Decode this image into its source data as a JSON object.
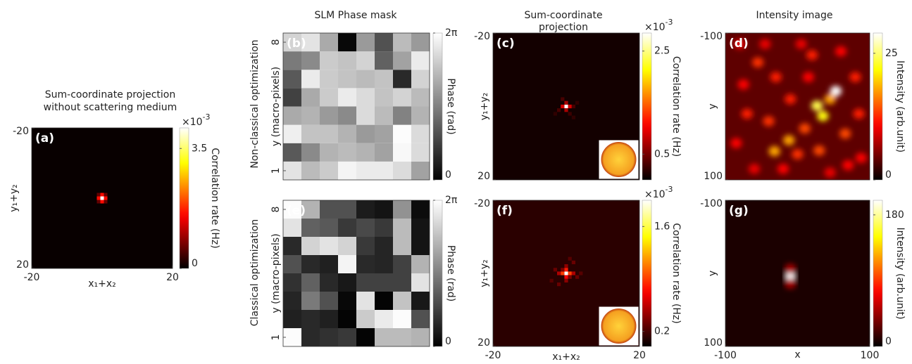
{
  "column_titles": [
    [
      "SLM Phase mask"
    ],
    [
      "Sum-coordinate",
      "projection"
    ],
    [
      "Intensity image"
    ]
  ],
  "row_labels": [
    "Non-classical optimization",
    "Classical optimization"
  ],
  "chart_data": [
    {
      "type": "heatmap",
      "panel": "(a)",
      "title": [
        "Sum-coordinate projection",
        "without scattering medium"
      ],
      "x_label": "x₁+x₂",
      "y_label": "y₁+y₂",
      "xlim": [
        -20,
        20
      ],
      "ylim": [
        -20,
        20
      ],
      "y_reversed": true,
      "xticks": [
        -20,
        20
      ],
      "yticks": [
        -20,
        20
      ],
      "colormap": "hot",
      "colorbar_label": "Correlation rate (Hz)",
      "colorbar_multiplier": {
        "base": "×10",
        "exponent": "-3"
      },
      "clim": [
        0,
        4.1
      ],
      "cticks": [
        0,
        3.5
      ],
      "background_value": 0.05,
      "spots": [
        [
          0,
          0,
          4.1
        ],
        [
          1,
          0,
          1.6
        ],
        [
          -1,
          0,
          1.6
        ],
        [
          0,
          1,
          1.6
        ],
        [
          0,
          -1,
          1.6
        ],
        [
          1,
          1,
          0.6
        ],
        [
          -1,
          -1,
          0.6
        ],
        [
          1,
          -1,
          0.6
        ],
        [
          -1,
          1,
          0.6
        ]
      ]
    },
    {
      "type": "matrix",
      "panel": "(b)",
      "y_label": "y (macro-pixels)",
      "xlim": [
        0.5,
        8.5
      ],
      "ylim": [
        0.5,
        8.5
      ],
      "yticks": [
        1,
        8
      ],
      "colormap": "gray",
      "colorbar_label": "Phase (rad)",
      "clim": [
        0,
        6.283
      ],
      "cticks": [
        0,
        {
          "value": 6.283,
          "label": "2π"
        }
      ],
      "z": [
        [
          5.6,
          4.6,
          5.0,
          6.0,
          5.8,
          5.8,
          5.4,
          4.0
        ],
        [
          2.2,
          3.4,
          4.4,
          4.6,
          4.4,
          4.0,
          6.1,
          5.4
        ],
        [
          5.9,
          4.8,
          4.8,
          4.4,
          3.8,
          4.0,
          6.2,
          5.4
        ],
        [
          4.2,
          4.4,
          3.8,
          3.4,
          5.4,
          4.6,
          3.2,
          4.4
        ],
        [
          1.6,
          4.2,
          5.0,
          5.8,
          5.4,
          4.8,
          5.2,
          4.6
        ],
        [
          2.2,
          5.8,
          5.0,
          4.8,
          4.6,
          4.8,
          1.0,
          5.2
        ],
        [
          3.0,
          3.4,
          5.0,
          4.8,
          5.2,
          2.4,
          4.0,
          5.8
        ],
        [
          5.2,
          5.6,
          4.2,
          0.2,
          3.8,
          2.0,
          4.6,
          3.8
        ]
      ]
    },
    {
      "type": "heatmap",
      "panel": "(c)",
      "y_label": "y₁+y₂",
      "xlim": [
        -20,
        20
      ],
      "ylim": [
        -20,
        20
      ],
      "y_reversed": true,
      "yticks": [
        -20,
        20
      ],
      "colormap": "hot",
      "colorbar_label": "Correlation rate (Hz)",
      "colorbar_multiplier": {
        "base": "×10",
        "exponent": "-3"
      },
      "clim": [
        0,
        2.85
      ],
      "cticks": [
        0.5,
        2.5
      ],
      "background_value": 0.08,
      "spots": [
        [
          0,
          0,
          2.85
        ],
        [
          1,
          0,
          0.9
        ],
        [
          -1,
          0,
          0.9
        ],
        [
          0,
          1,
          0.7
        ],
        [
          0,
          -1,
          0.7
        ],
        [
          2,
          0,
          0.3
        ],
        [
          -2,
          1,
          0.3
        ],
        [
          1,
          2,
          0.25
        ],
        [
          -1,
          -2,
          0.3
        ],
        [
          3,
          -1,
          0.2
        ],
        [
          -3,
          2,
          0.2
        ],
        [
          2,
          3,
          0.2
        ]
      ]
    },
    {
      "type": "speckle",
      "panel": "(d)",
      "y_label": "y",
      "xlim": [
        -100,
        100
      ],
      "ylim": [
        -100,
        100
      ],
      "y_reversed": true,
      "yticks": [
        -100,
        100
      ],
      "colormap": "hot",
      "colorbar_label": "Intensity (arb.unit)",
      "clim": [
        0,
        29
      ],
      "cticks": [
        0,
        25
      ],
      "background_value": 4,
      "spots": [
        [
          53,
          -21,
          29
        ],
        [
          27,
          -1,
          24
        ],
        [
          35,
          13,
          22
        ],
        [
          45,
          -10,
          18
        ],
        [
          -12,
          46,
          18
        ],
        [
          -32,
          61,
          18
        ],
        [
          66,
          37,
          14
        ],
        [
          10,
          30,
          14
        ],
        [
          -55,
          -60,
          13
        ],
        [
          -30,
          -40,
          12
        ],
        [
          -70,
          10,
          12
        ],
        [
          20,
          -70,
          12
        ],
        [
          60,
          -75,
          11
        ],
        [
          80,
          -40,
          12
        ],
        [
          -80,
          -85,
          10
        ],
        [
          -10,
          -10,
          12
        ],
        [
          0,
          65,
          13
        ],
        [
          30,
          60,
          14
        ],
        [
          70,
          80,
          11
        ],
        [
          -60,
          85,
          10
        ],
        [
          -85,
          50,
          11
        ],
        [
          45,
          90,
          10
        ],
        [
          -40,
          20,
          13
        ],
        [
          15,
          -40,
          11
        ],
        [
          85,
          10,
          12
        ],
        [
          -20,
          85,
          11
        ],
        [
          -45,
          -85,
          10
        ],
        [
          88,
          70,
          11
        ],
        [
          5,
          -85,
          10
        ],
        [
          -75,
          -30,
          11
        ]
      ]
    },
    {
      "type": "matrix",
      "panel": "(e)",
      "y_label": "y (macro-pixels)",
      "xlim": [
        0.5,
        8.5
      ],
      "ylim": [
        0.5,
        8.5
      ],
      "yticks": [
        1,
        8
      ],
      "colormap": "gray",
      "colorbar_label": "Phase (rad)",
      "clim": [
        0,
        6.283
      ],
      "cticks": [
        0,
        {
          "value": 6.283,
          "label": "2π"
        }
      ],
      "z": [
        [
          6.2,
          1.0,
          1.2,
          1.4,
          0.1,
          4.6,
          4.6,
          4.4
        ],
        [
          0.8,
          1.0,
          0.8,
          0.1,
          5.0,
          5.8,
          6.2,
          2.0
        ],
        [
          0.9,
          3.0,
          2.0,
          0.2,
          5.6,
          0.1,
          4.8,
          0.6
        ],
        [
          1.2,
          2.4,
          1.0,
          0.6,
          1.6,
          1.6,
          1.6,
          5.6
        ],
        [
          2.0,
          1.0,
          0.8,
          6.0,
          1.0,
          0.9,
          1.6,
          4.4
        ],
        [
          1.0,
          5.2,
          5.6,
          5.2,
          1.4,
          0.9,
          4.6,
          0.5
        ],
        [
          5.6,
          2.4,
          2.2,
          1.4,
          1.8,
          1.4,
          4.6,
          0.5
        ],
        [
          6.2,
          4.4,
          2.0,
          2.0,
          0.7,
          0.5,
          3.6,
          0.3
        ]
      ]
    },
    {
      "type": "heatmap",
      "panel": "(f)",
      "x_label": "x₁+x₂",
      "y_label": "y₁+y₂",
      "xlim": [
        -20,
        20
      ],
      "ylim": [
        -20,
        20
      ],
      "y_reversed": true,
      "xticks": [
        -20,
        20
      ],
      "yticks": [
        -20,
        20
      ],
      "colormap": "hot",
      "colorbar_label": "Correlation rate (Hz)",
      "colorbar_multiplier": {
        "base": "×10",
        "exponent": "-3"
      },
      "clim": [
        0,
        1.95
      ],
      "cticks": [
        0.2,
        1.6
      ],
      "background_value": 0.12,
      "spots": [
        [
          0,
          0,
          1.95
        ],
        [
          1,
          0,
          0.9
        ],
        [
          -1,
          0,
          0.9
        ],
        [
          0,
          1,
          0.7
        ],
        [
          0,
          -1,
          0.8
        ],
        [
          2,
          0,
          0.5
        ],
        [
          -2,
          0,
          0.5
        ],
        [
          0,
          -2,
          0.4
        ],
        [
          0,
          2,
          0.4
        ],
        [
          1,
          1,
          0.35
        ],
        [
          -1,
          -1,
          0.35
        ],
        [
          3,
          1,
          0.3
        ],
        [
          -3,
          -1,
          0.3
        ],
        [
          2,
          -3,
          0.3
        ],
        [
          -2,
          3,
          0.3
        ],
        [
          4,
          0,
          0.25
        ],
        [
          -4,
          2,
          0.25
        ],
        [
          1,
          -4,
          0.25
        ]
      ]
    },
    {
      "type": "speckle",
      "panel": "(g)",
      "x_label": "x",
      "y_label": "y",
      "xlim": [
        -100,
        100
      ],
      "ylim": [
        -100,
        100
      ],
      "y_reversed": true,
      "xticks": [
        -100,
        100
      ],
      "yticks": [
        -100,
        100
      ],
      "colormap": "hot",
      "colorbar_label": "Intensity (arb.unit)",
      "clim": [
        0,
        200
      ],
      "cticks": [
        0,
        180
      ],
      "background_value": 8,
      "spots": [
        [
          -10,
          4,
          200
        ],
        [
          -10,
          14,
          50
        ],
        [
          -10,
          -6,
          50
        ]
      ]
    }
  ]
}
